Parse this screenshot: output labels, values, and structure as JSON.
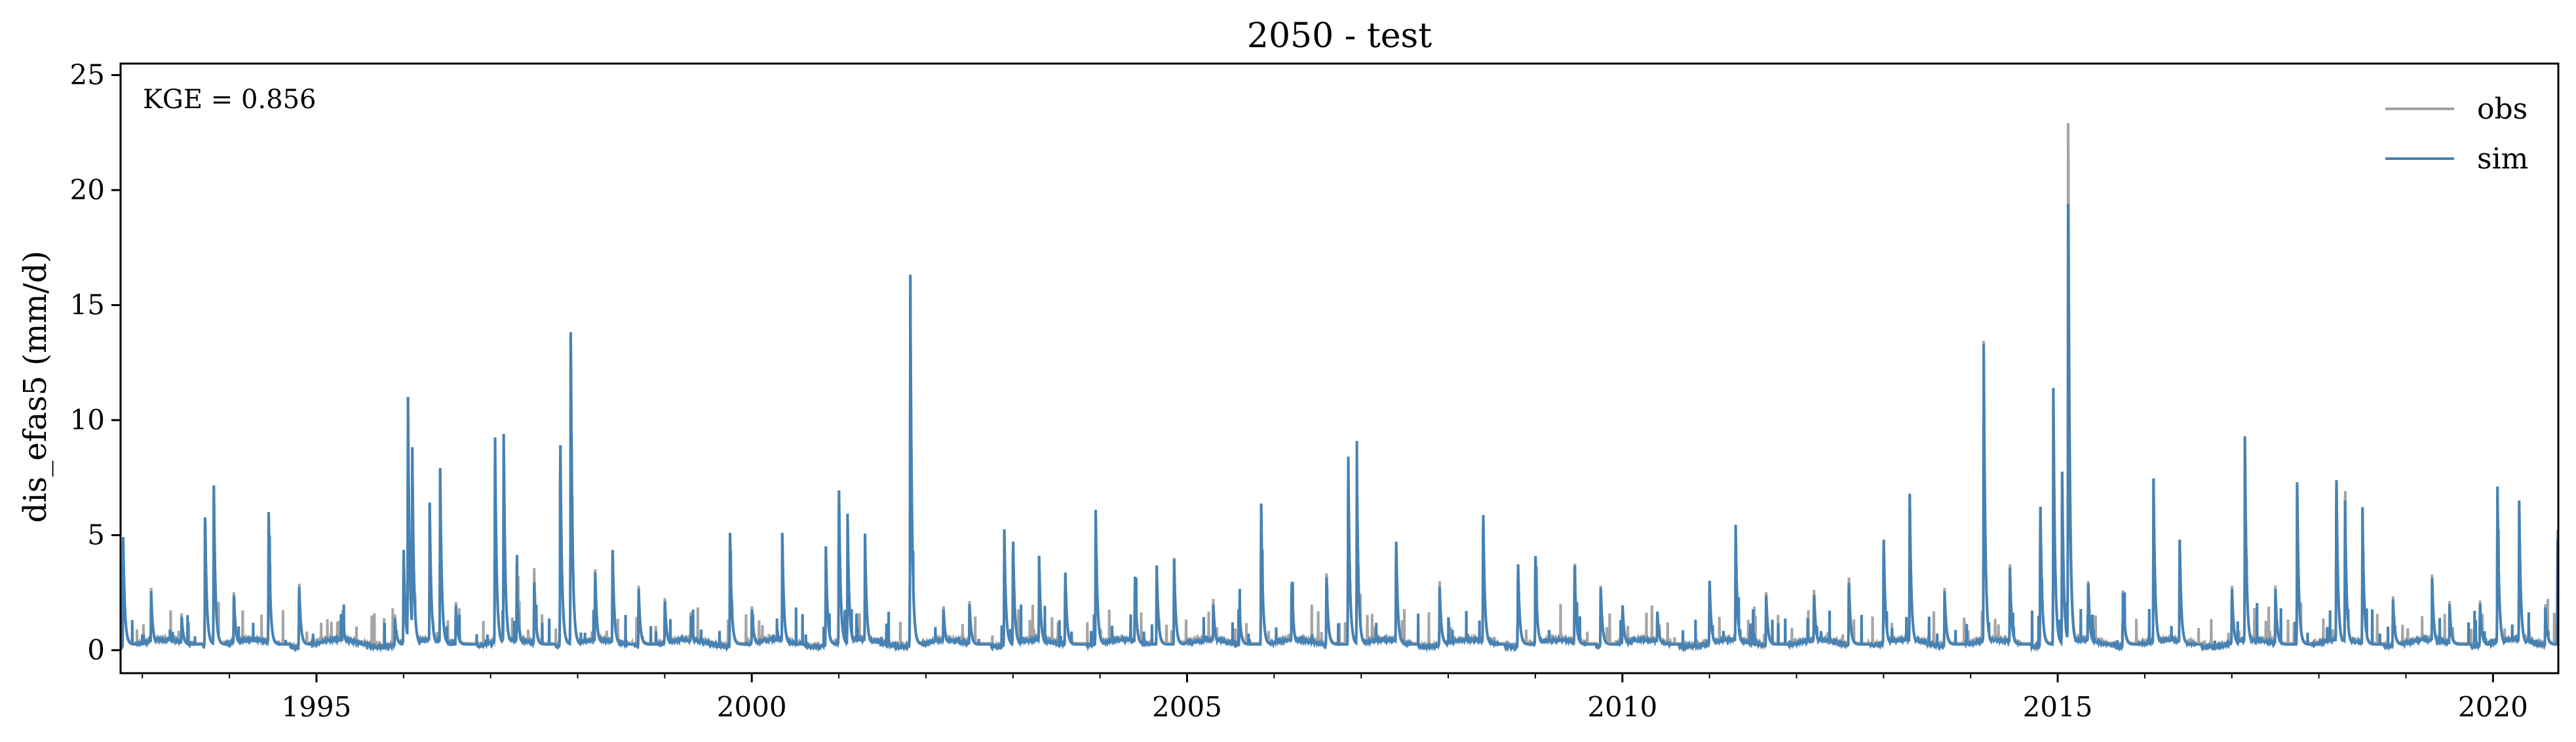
{
  "chart_data": {
    "type": "line",
    "title": "2050 - test",
    "xlabel": "",
    "ylabel": "dis_efas5 (mm/d)",
    "xlim": [
      1992.75,
      2020.75
    ],
    "ylim": [
      -1,
      25.5
    ],
    "x_ticks": [
      1995,
      2000,
      2005,
      2010,
      2015,
      2020
    ],
    "x_tick_labels": [
      "1995",
      "2000",
      "2005",
      "2010",
      "2015",
      "2020"
    ],
    "y_ticks": [
      0,
      5,
      10,
      15,
      20,
      25
    ],
    "y_tick_labels": [
      "0",
      "5",
      "10",
      "15",
      "20",
      "25"
    ],
    "annotation": "KGE = 0.856",
    "legend_position": "top-right",
    "grid": false,
    "series": [
      {
        "name": "obs",
        "color": "#a0a0a0",
        "baseline": 0.3,
        "peaks": [
          [
            1992.78,
            4.6
          ],
          [
            1993.1,
            2.5
          ],
          [
            1993.45,
            1.4
          ],
          [
            1993.72,
            6.0
          ],
          [
            1993.82,
            7.3
          ],
          [
            1994.05,
            2.4
          ],
          [
            1994.45,
            6.1
          ],
          [
            1994.8,
            2.9
          ],
          [
            1995.3,
            1.5
          ],
          [
            1995.9,
            1.3
          ],
          [
            1996.0,
            4.5
          ],
          [
            1996.05,
            11.4
          ],
          [
            1996.1,
            8.8
          ],
          [
            1996.3,
            6.3
          ],
          [
            1996.42,
            8.1
          ],
          [
            1996.6,
            2.0
          ],
          [
            1997.05,
            9.6
          ],
          [
            1997.15,
            9.3
          ],
          [
            1997.3,
            3.5
          ],
          [
            1997.5,
            3.4
          ],
          [
            1997.8,
            9.6
          ],
          [
            1997.92,
            14.5
          ],
          [
            1998.2,
            3.6
          ],
          [
            1998.4,
            4.5
          ],
          [
            1998.7,
            2.6
          ],
          [
            1999.0,
            2.2
          ],
          [
            1999.3,
            1.4
          ],
          [
            1999.75,
            5.0
          ],
          [
            2000.0,
            1.8
          ],
          [
            2000.35,
            5.0
          ],
          [
            2000.85,
            4.5
          ],
          [
            2001.0,
            7.4
          ],
          [
            2001.1,
            5.8
          ],
          [
            2001.3,
            4.9
          ],
          [
            2001.82,
            17.0
          ],
          [
            2002.2,
            1.8
          ],
          [
            2002.5,
            1.9
          ],
          [
            2002.9,
            5.1
          ],
          [
            2003.0,
            4.9
          ],
          [
            2003.3,
            3.9
          ],
          [
            2003.6,
            3.4
          ],
          [
            2003.95,
            5.9
          ],
          [
            2004.4,
            3.2
          ],
          [
            2004.65,
            3.6
          ],
          [
            2004.85,
            4.0
          ],
          [
            2005.3,
            2.0
          ],
          [
            2005.6,
            1.8
          ],
          [
            2005.85,
            6.5
          ],
          [
            2006.2,
            3.0
          ],
          [
            2006.6,
            3.4
          ],
          [
            2006.85,
            8.7
          ],
          [
            2006.95,
            7.8
          ],
          [
            2007.4,
            4.9
          ],
          [
            2007.9,
            2.8
          ],
          [
            2008.4,
            6.2
          ],
          [
            2008.8,
            3.8
          ],
          [
            2009.0,
            4.2
          ],
          [
            2009.45,
            3.6
          ],
          [
            2009.75,
            2.8
          ],
          [
            2010.0,
            1.8
          ],
          [
            2010.4,
            1.5
          ],
          [
            2011.0,
            3.0
          ],
          [
            2011.3,
            5.3
          ],
          [
            2011.65,
            2.4
          ],
          [
            2012.2,
            2.6
          ],
          [
            2012.6,
            3.2
          ],
          [
            2013.0,
            5.0
          ],
          [
            2013.3,
            6.7
          ],
          [
            2013.7,
            2.5
          ],
          [
            2014.15,
            13.2
          ],
          [
            2014.45,
            3.7
          ],
          [
            2014.8,
            6.6
          ],
          [
            2014.95,
            11.3
          ],
          [
            2015.05,
            8.0
          ],
          [
            2015.12,
            24.2
          ],
          [
            2015.35,
            3.0
          ],
          [
            2015.75,
            2.6
          ],
          [
            2016.1,
            7.4
          ],
          [
            2016.4,
            5.0
          ],
          [
            2017.0,
            2.8
          ],
          [
            2017.15,
            9.2
          ],
          [
            2017.5,
            2.6
          ],
          [
            2017.75,
            7.2
          ],
          [
            2018.2,
            7.9
          ],
          [
            2018.3,
            6.4
          ],
          [
            2018.5,
            6.1
          ],
          [
            2018.85,
            2.2
          ],
          [
            2019.3,
            3.1
          ],
          [
            2019.5,
            1.9
          ],
          [
            2019.85,
            2.0
          ],
          [
            2020.05,
            7.3
          ],
          [
            2020.3,
            6.4
          ],
          [
            2020.6,
            1.9
          ],
          [
            2020.74,
            4.9
          ]
        ]
      },
      {
        "name": "sim",
        "color": "#4682b4",
        "baseline": 0.25,
        "peaks": [
          [
            1992.78,
            4.7
          ],
          [
            1993.1,
            2.4
          ],
          [
            1993.45,
            1.3
          ],
          [
            1993.72,
            6.1
          ],
          [
            1993.82,
            7.4
          ],
          [
            1994.05,
            2.3
          ],
          [
            1994.45,
            6.2
          ],
          [
            1994.8,
            2.8
          ],
          [
            1995.3,
            1.4
          ],
          [
            1995.9,
            1.2
          ],
          [
            1996.0,
            4.6
          ],
          [
            1996.05,
            11.6
          ],
          [
            1996.1,
            8.9
          ],
          [
            1996.3,
            6.4
          ],
          [
            1996.42,
            8.2
          ],
          [
            1996.6,
            1.9
          ],
          [
            1997.05,
            9.7
          ],
          [
            1997.15,
            9.4
          ],
          [
            1997.3,
            2.9
          ],
          [
            1997.5,
            2.8
          ],
          [
            1997.8,
            9.7
          ],
          [
            1997.92,
            14.6
          ],
          [
            1998.2,
            3.5
          ],
          [
            1998.4,
            4.6
          ],
          [
            1998.7,
            2.5
          ],
          [
            1999.0,
            2.1
          ],
          [
            1999.3,
            1.3
          ],
          [
            1999.75,
            5.1
          ],
          [
            2000.0,
            1.7
          ],
          [
            2000.35,
            5.1
          ],
          [
            2000.85,
            4.6
          ],
          [
            2001.0,
            7.5
          ],
          [
            2001.1,
            5.9
          ],
          [
            2001.3,
            5.0
          ],
          [
            2001.82,
            17.2
          ],
          [
            2002.2,
            1.7
          ],
          [
            2002.5,
            1.8
          ],
          [
            2002.9,
            5.2
          ],
          [
            2003.0,
            5.0
          ],
          [
            2003.3,
            4.0
          ],
          [
            2003.6,
            3.5
          ],
          [
            2003.95,
            6.1
          ],
          [
            2004.4,
            3.3
          ],
          [
            2004.65,
            3.7
          ],
          [
            2004.85,
            4.0
          ],
          [
            2005.3,
            1.8
          ],
          [
            2005.6,
            1.6
          ],
          [
            2005.85,
            6.6
          ],
          [
            2006.2,
            2.9
          ],
          [
            2006.6,
            3.2
          ],
          [
            2006.85,
            8.8
          ],
          [
            2006.95,
            7.9
          ],
          [
            2007.4,
            5.0
          ],
          [
            2007.9,
            2.6
          ],
          [
            2008.4,
            6.3
          ],
          [
            2008.8,
            3.9
          ],
          [
            2009.0,
            4.3
          ],
          [
            2009.45,
            3.7
          ],
          [
            2009.75,
            2.7
          ],
          [
            2010.0,
            1.9
          ],
          [
            2010.4,
            1.6
          ],
          [
            2011.0,
            3.1
          ],
          [
            2011.3,
            5.4
          ],
          [
            2011.65,
            2.3
          ],
          [
            2012.2,
            2.4
          ],
          [
            2012.6,
            3.0
          ],
          [
            2013.0,
            5.1
          ],
          [
            2013.3,
            6.8
          ],
          [
            2013.7,
            2.4
          ],
          [
            2014.15,
            13.3
          ],
          [
            2014.45,
            3.6
          ],
          [
            2014.8,
            6.7
          ],
          [
            2014.95,
            11.4
          ],
          [
            2015.05,
            8.1
          ],
          [
            2015.12,
            20.5
          ],
          [
            2015.35,
            2.9
          ],
          [
            2015.75,
            2.5
          ],
          [
            2016.1,
            7.5
          ],
          [
            2016.4,
            5.1
          ],
          [
            2017.0,
            2.7
          ],
          [
            2017.15,
            9.3
          ],
          [
            2017.5,
            2.5
          ],
          [
            2017.75,
            7.3
          ],
          [
            2018.2,
            8.0
          ],
          [
            2018.3,
            6.5
          ],
          [
            2018.5,
            6.2
          ],
          [
            2018.85,
            2.1
          ],
          [
            2019.3,
            3.0
          ],
          [
            2019.5,
            1.8
          ],
          [
            2019.85,
            1.9
          ],
          [
            2020.05,
            7.4
          ],
          [
            2020.3,
            6.5
          ],
          [
            2020.6,
            1.8
          ],
          [
            2020.74,
            5.0
          ]
        ]
      }
    ]
  }
}
